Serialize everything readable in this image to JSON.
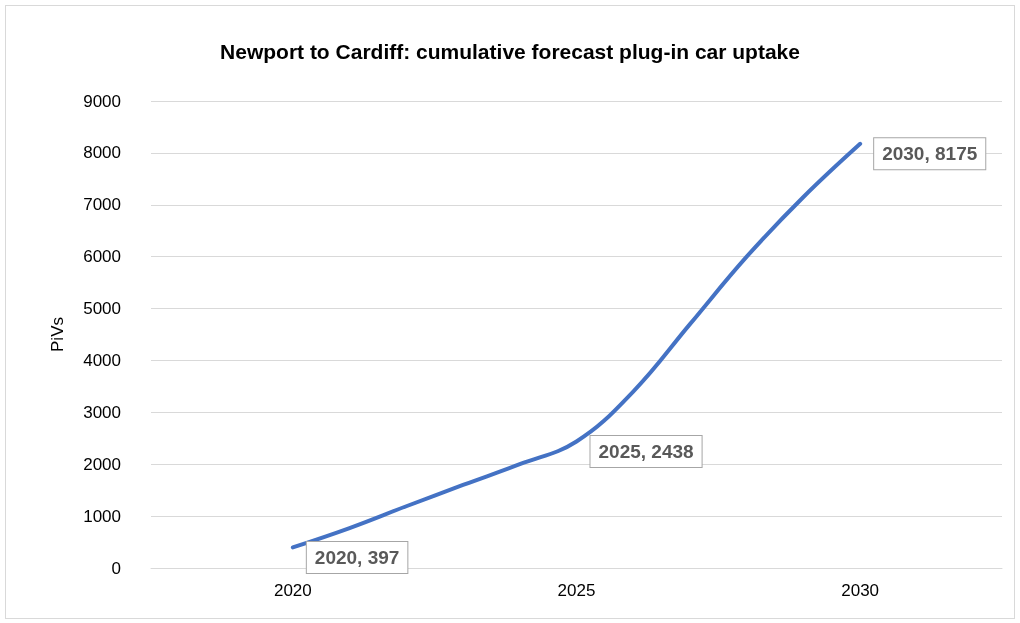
{
  "chart_data": {
    "type": "line",
    "title": "Newport to Cardiff: cumulative forecast plug-in car uptake",
    "ylabel": "PiVs",
    "x": [
      2020,
      2021,
      2022,
      2023,
      2024,
      2025,
      2026,
      2027,
      2028,
      2029,
      2030
    ],
    "series": [
      {
        "color": "#4472c4",
        "values": [
          397,
          770,
          1190,
          1600,
          2000,
          2438,
          3400,
          4700,
          6000,
          7150,
          8175
        ],
        "value_labels": [
          "2020, 397",
          null,
          null,
          null,
          null,
          "2025, 2438",
          null,
          null,
          null,
          null,
          "2030, 8175"
        ]
      }
    ],
    "xlim": [
      2017.5,
      2032.5
    ],
    "xticks": [
      2020,
      2025,
      2030
    ],
    "ylim": [
      0,
      9000
    ],
    "yticks": [
      0,
      1000,
      2000,
      3000,
      4000,
      5000,
      6000,
      7000,
      8000,
      9000
    ],
    "grid": "y",
    "marker": "none",
    "line_style": "solid"
  }
}
